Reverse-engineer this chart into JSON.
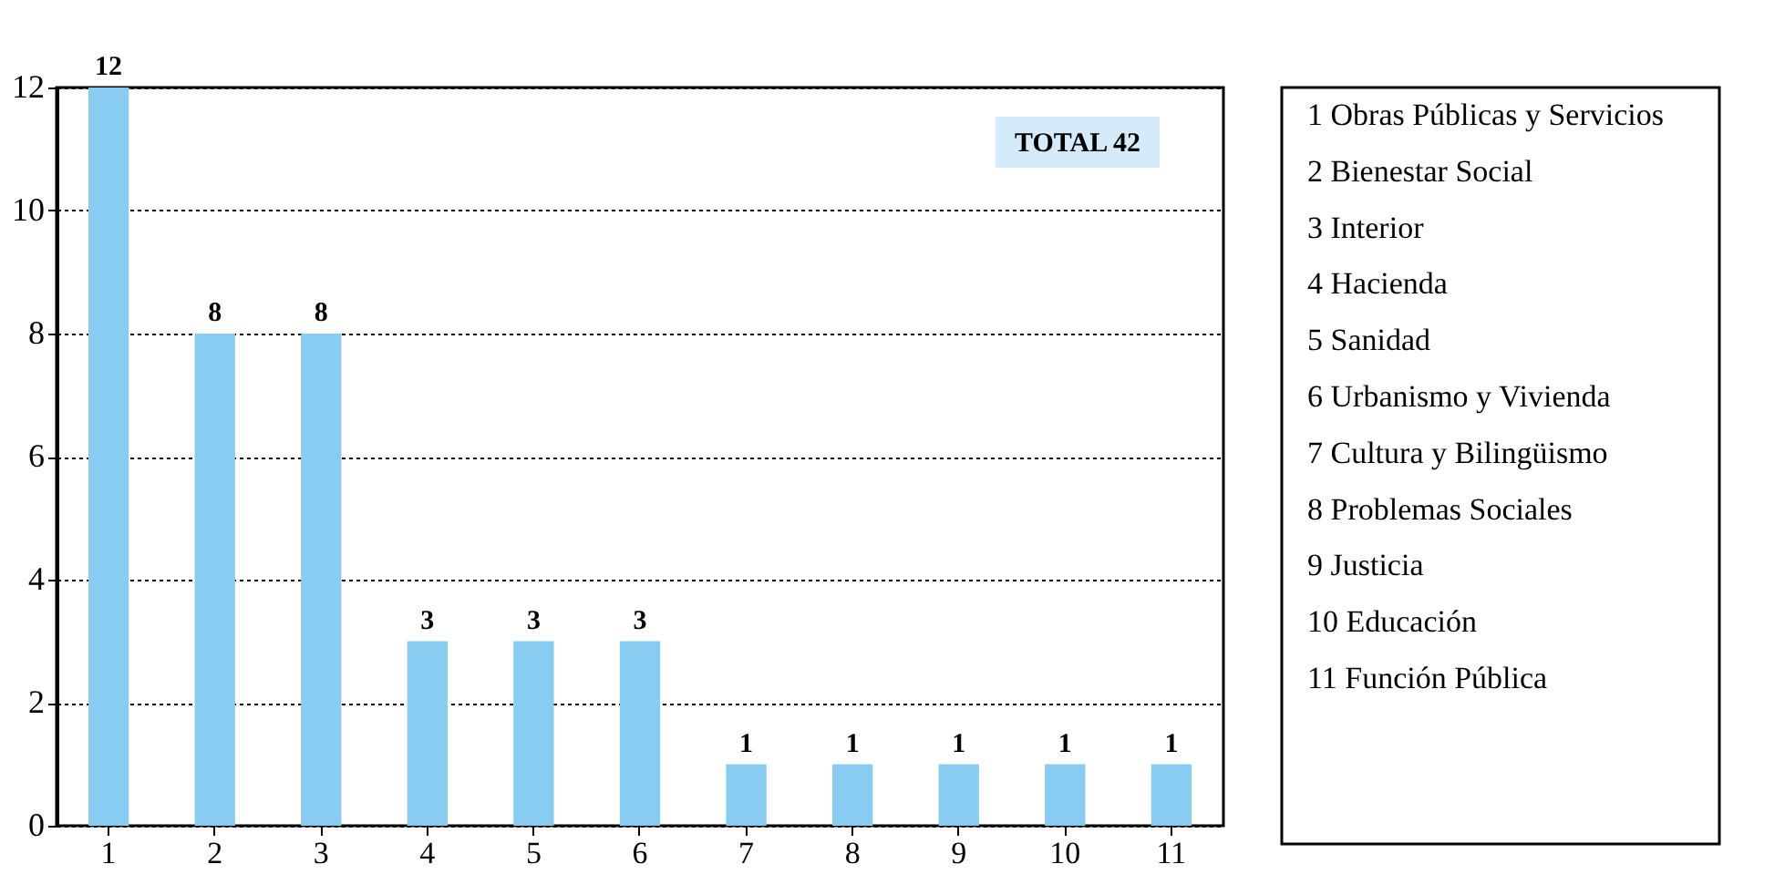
{
  "chart_data": {
    "type": "bar",
    "categories": [
      "1",
      "2",
      "3",
      "4",
      "5",
      "6",
      "7",
      "8",
      "9",
      "10",
      "11"
    ],
    "values": [
      12,
      8,
      8,
      3,
      3,
      3,
      1,
      1,
      1,
      1,
      1
    ],
    "color": "#88ccf1",
    "ylim": [
      0,
      12
    ],
    "yticks": [
      0,
      2,
      4,
      6,
      8,
      10,
      12
    ],
    "grid": "y",
    "data_labels": true,
    "annotations": [
      "TOTAL  42",
      "1  Obras Públicas y Servicios",
      "2  Bienestar Social",
      "3  Interior",
      "4  Hacienda",
      "5  Sanidad",
      "6  Urbanismo y Vivienda",
      "7  Cultura y Bilingüismo",
      "8  Problemas Sociales",
      "9  Justicia",
      "10  Educación",
      "11  Función Pública"
    ]
  }
}
